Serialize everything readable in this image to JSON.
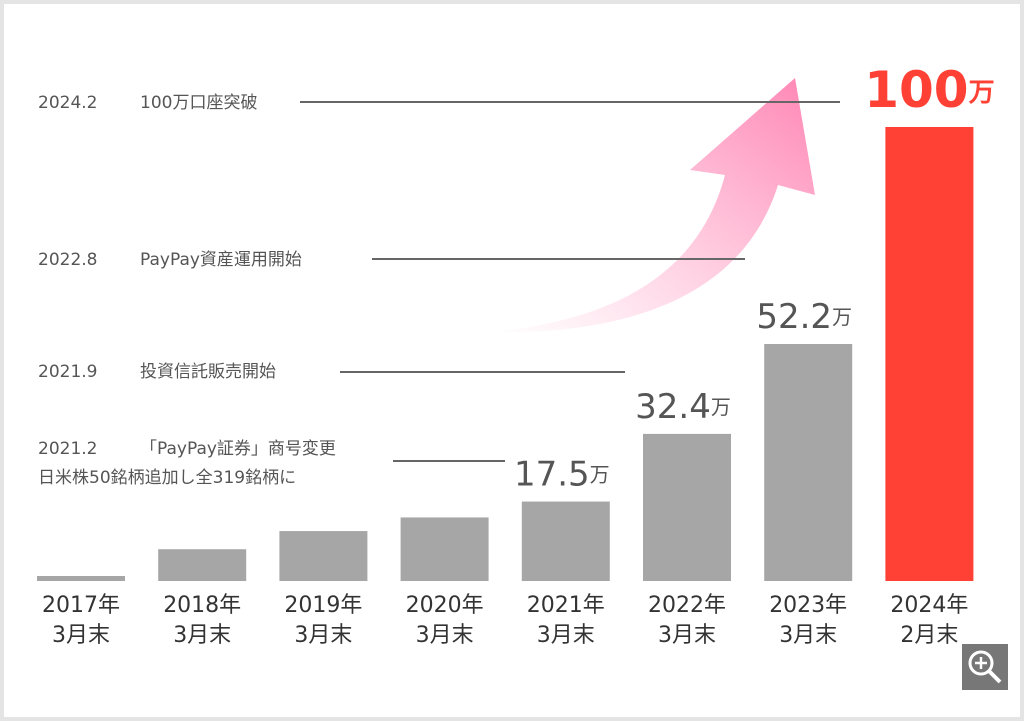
{
  "chart_data": {
    "type": "bar",
    "categories": [
      [
        "2017年",
        "3月末"
      ],
      [
        "2018年",
        "3月末"
      ],
      [
        "2019年",
        "3月末"
      ],
      [
        "2020年",
        "3月末"
      ],
      [
        "2021年",
        "3月末"
      ],
      [
        "2022年",
        "3月末"
      ],
      [
        "2023年",
        "3月末"
      ],
      [
        "2024年",
        "2月末"
      ]
    ],
    "values": [
      1.1,
      7,
      11,
      14,
      17.5,
      32.4,
      52.2,
      100
    ],
    "value_labels": [
      null,
      null,
      null,
      null,
      "17.5",
      "32.4",
      "52.2",
      "100"
    ],
    "unit": "万",
    "colors": [
      "#a6a6a6",
      "#a6a6a6",
      "#a6a6a6",
      "#a6a6a6",
      "#a6a6a6",
      "#a6a6a6",
      "#a6a6a6",
      "#ff4034"
    ],
    "annotations": [
      {
        "date": "2024.2",
        "text": [
          "100万口座突破"
        ]
      },
      {
        "date": "2022.8",
        "text": [
          "PayPay資産運用開始"
        ]
      },
      {
        "date": "2021.9",
        "text": [
          "投資信託販売開始"
        ]
      },
      {
        "date": "2021.2",
        "text": [
          "「PayPay証券」商号変更",
          "日米株50銘柄追加し全319銘柄に"
        ]
      }
    ]
  }
}
